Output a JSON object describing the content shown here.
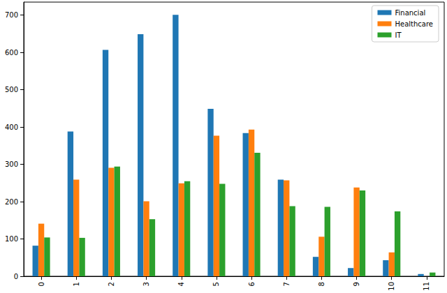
{
  "chart_data": {
    "type": "bar",
    "categories": [
      "0",
      "1",
      "2",
      "3",
      "4",
      "5",
      "6",
      "7",
      "8",
      "9",
      "10",
      "11"
    ],
    "series": [
      {
        "name": "Financial",
        "color": "#1f77b4",
        "values": [
          82,
          388,
          607,
          649,
          701,
          449,
          384,
          259,
          52,
          22,
          43,
          6
        ]
      },
      {
        "name": "Healthcare",
        "color": "#ff7f0e",
        "values": [
          141,
          259,
          291,
          201,
          249,
          377,
          393,
          257,
          106,
          238,
          64,
          0
        ]
      },
      {
        "name": "IT",
        "color": "#2ca02c",
        "values": [
          104,
          103,
          294,
          153,
          255,
          248,
          331,
          188,
          186,
          230,
          174,
          10
        ]
      }
    ],
    "ylim": [
      0,
      735
    ],
    "yticks": [
      0,
      100,
      200,
      300,
      400,
      500,
      600,
      700
    ],
    "grid": false,
    "legend": "upper right"
  }
}
